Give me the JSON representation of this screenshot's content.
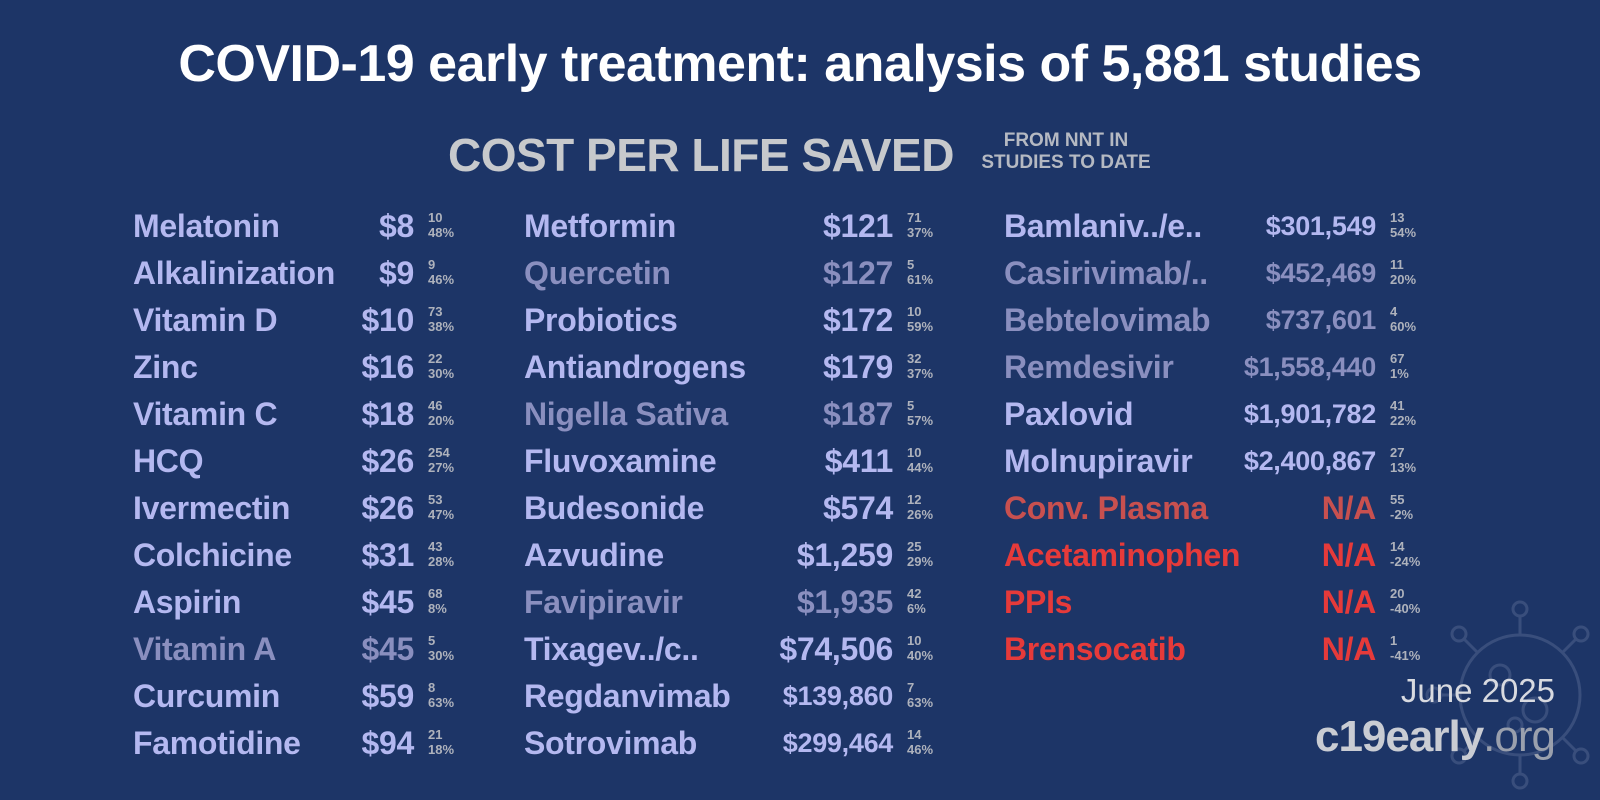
{
  "title": "COVID-19 early treatment: analysis of 5,881 studies",
  "subtitle": "COST PER LIFE SAVED",
  "subnote": [
    "FROM NNT IN",
    "STUDIES TO DATE"
  ],
  "columns": [
    {
      "rows": [
        {
          "name": "Melatonin",
          "cost": "$8",
          "n": "10",
          "pct": "48%",
          "style": "main"
        },
        {
          "name": "Alkalinization",
          "cost": "$9",
          "n": "9",
          "pct": "46%",
          "style": "main"
        },
        {
          "name": "Vitamin D",
          "cost": "$10",
          "n": "73",
          "pct": "38%",
          "style": "main"
        },
        {
          "name": "Zinc",
          "cost": "$16",
          "n": "22",
          "pct": "30%",
          "style": "main"
        },
        {
          "name": "Vitamin C",
          "cost": "$18",
          "n": "46",
          "pct": "20%",
          "style": "main"
        },
        {
          "name": "HCQ",
          "cost": "$26",
          "n": "254",
          "pct": "27%",
          "style": "main"
        },
        {
          "name": "Ivermectin",
          "cost": "$26",
          "n": "53",
          "pct": "47%",
          "style": "main"
        },
        {
          "name": "Colchicine",
          "cost": "$31",
          "n": "43",
          "pct": "28%",
          "style": "main"
        },
        {
          "name": "Aspirin",
          "cost": "$45",
          "n": "68",
          "pct": "8%",
          "style": "main"
        },
        {
          "name": "Vitamin A",
          "cost": "$45",
          "n": "5",
          "pct": "30%",
          "style": "dim"
        },
        {
          "name": "Curcumin",
          "cost": "$59",
          "n": "8",
          "pct": "63%",
          "style": "main"
        },
        {
          "name": "Famotidine",
          "cost": "$94",
          "n": "21",
          "pct": "18%",
          "style": "main"
        }
      ]
    },
    {
      "rows": [
        {
          "name": "Metformin",
          "cost": "$121",
          "n": "71",
          "pct": "37%",
          "style": "main"
        },
        {
          "name": "Quercetin",
          "cost": "$127",
          "n": "5",
          "pct": "61%",
          "style": "dim"
        },
        {
          "name": "Probiotics",
          "cost": "$172",
          "n": "10",
          "pct": "59%",
          "style": "main"
        },
        {
          "name": "Antiandrogens",
          "cost": "$179",
          "n": "32",
          "pct": "37%",
          "style": "main"
        },
        {
          "name": "Nigella Sativa",
          "cost": "$187",
          "n": "5",
          "pct": "57%",
          "style": "dim"
        },
        {
          "name": "Fluvoxamine",
          "cost": "$411",
          "n": "10",
          "pct": "44%",
          "style": "main"
        },
        {
          "name": "Budesonide",
          "cost": "$574",
          "n": "12",
          "pct": "26%",
          "style": "main"
        },
        {
          "name": "Azvudine",
          "cost": "$1,259",
          "n": "25",
          "pct": "29%",
          "style": "main"
        },
        {
          "name": "Favipiravir",
          "cost": "$1,935",
          "n": "42",
          "pct": "6%",
          "style": "dim"
        },
        {
          "name": "Tixagev../c..",
          "cost": "$74,506",
          "n": "10",
          "pct": "40%",
          "style": "main"
        },
        {
          "name": "Regdanvimab",
          "cost": "$139,860",
          "n": "7",
          "pct": "63%",
          "style": "main",
          "small": true
        },
        {
          "name": "Sotrovimab",
          "cost": "$299,464",
          "n": "14",
          "pct": "46%",
          "style": "main",
          "small": true
        }
      ]
    },
    {
      "rows": [
        {
          "name": "Bamlaniv../e..",
          "cost": "$301,549",
          "n": "13",
          "pct": "54%",
          "style": "main",
          "small": true
        },
        {
          "name": "Casirivimab/..",
          "cost": "$452,469",
          "n": "11",
          "pct": "20%",
          "style": "dim",
          "small": true
        },
        {
          "name": "Bebtelovimab",
          "cost": "$737,601",
          "n": "4",
          "pct": "60%",
          "style": "dim",
          "small": true
        },
        {
          "name": "Remdesivir",
          "cost": "$1,558,440",
          "n": "67",
          "pct": "1%",
          "style": "dim",
          "small": true
        },
        {
          "name": "Paxlovid",
          "cost": "$1,901,782",
          "n": "41",
          "pct": "22%",
          "style": "main",
          "small": true
        },
        {
          "name": "Molnupiravir",
          "cost": "$2,400,867",
          "n": "27",
          "pct": "13%",
          "style": "main",
          "small": true
        },
        {
          "name": "Conv. Plasma",
          "cost": "N/A",
          "n": "55",
          "pct": "-2%",
          "style": "dimr"
        },
        {
          "name": "Acetaminophen",
          "cost": "N/A",
          "n": "14",
          "pct": "-24%",
          "style": "red"
        },
        {
          "name": "PPIs",
          "cost": "N/A",
          "n": "20",
          "pct": "-40%",
          "style": "red"
        },
        {
          "name": "Brensocatib",
          "cost": "N/A",
          "n": "1",
          "pct": "-41%",
          "style": "red"
        }
      ]
    }
  ],
  "date": "June 2025",
  "brand": {
    "part1": "c19",
    "part2": "early",
    "part3": ".org"
  },
  "colors": {
    "background": "#1d3567",
    "main": "#b4b8f0",
    "dim": "#8a8fbf",
    "dimr": "#c8504f",
    "red": "#e63a3a"
  },
  "icons": [
    "virus-icon"
  ]
}
